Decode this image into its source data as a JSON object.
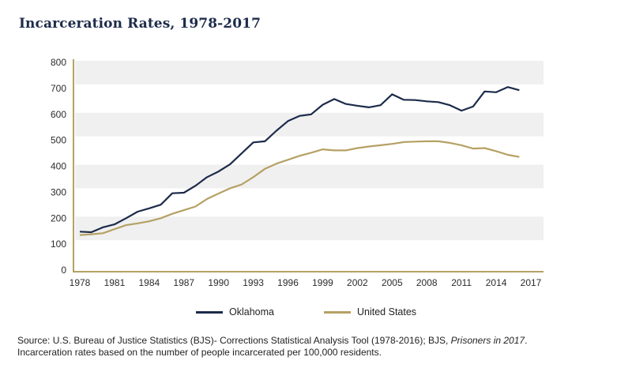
{
  "title": "Incarceration Rates, 1978-2017",
  "chart_data": {
    "type": "line",
    "title": "Incarceration Rates, 1978-2017",
    "xlabel": "",
    "ylabel": "",
    "ylim": [
      0,
      800
    ],
    "xlim": [
      1978,
      2017
    ],
    "yticks": [
      0,
      100,
      200,
      300,
      400,
      500,
      600,
      700,
      800
    ],
    "xticks": [
      1978,
      1981,
      1984,
      1987,
      1990,
      1993,
      1996,
      1999,
      2002,
      2005,
      2008,
      2011,
      2014,
      2017
    ],
    "grid": "alternating horizontal bands",
    "legend_position": "bottom-center",
    "x": [
      1978,
      1979,
      1980,
      1981,
      1982,
      1983,
      1984,
      1985,
      1986,
      1987,
      1988,
      1989,
      1990,
      1991,
      1992,
      1993,
      1994,
      1995,
      1996,
      1997,
      1998,
      1999,
      2000,
      2001,
      2002,
      2003,
      2004,
      2005,
      2006,
      2007,
      2008,
      2009,
      2010,
      2011,
      2012,
      2013,
      2014,
      2015,
      2016
    ],
    "series": [
      {
        "name": "Oklahoma",
        "color": "#1c2b4a",
        "values": [
          148,
          146,
          165,
          176,
          200,
          225,
          238,
          252,
          296,
          298,
          325,
          358,
          380,
          408,
          450,
          492,
          496,
          537,
          574,
          594,
          600,
          637,
          659,
          640,
          633,
          627,
          635,
          677,
          656,
          655,
          650,
          647,
          635,
          614,
          630,
          688,
          685,
          705,
          693
        ]
      },
      {
        "name": "United States",
        "color": "#b5a164",
        "values": [
          135,
          138,
          142,
          158,
          173,
          180,
          188,
          200,
          217,
          231,
          245,
          274,
          295,
          315,
          330,
          358,
          390,
          410,
          425,
          440,
          452,
          465,
          461,
          461,
          470,
          476,
          481,
          486,
          493,
          495,
          496,
          496,
          490,
          481,
          468,
          470,
          458,
          444,
          436
        ]
      }
    ]
  },
  "legend": [
    {
      "label": "Oklahoma",
      "color": "#1c2b4a"
    },
    {
      "label": "United States",
      "color": "#b5a164"
    }
  ],
  "source": {
    "line1_prefix": "Source: U.S. Bureau of Justice Statistics (BJS)- Corrections Statistical Analysis Tool (1978-2016); BJS, ",
    "line1_italic": "Prisoners in 2017",
    "line1_suffix": ".",
    "line2": "Incarceration rates based on the number of people incarcerated per 100,000 residents."
  },
  "colors": {
    "band": "#f0f0f0",
    "axis": "#b5a164",
    "title": "#1c2b4a"
  }
}
